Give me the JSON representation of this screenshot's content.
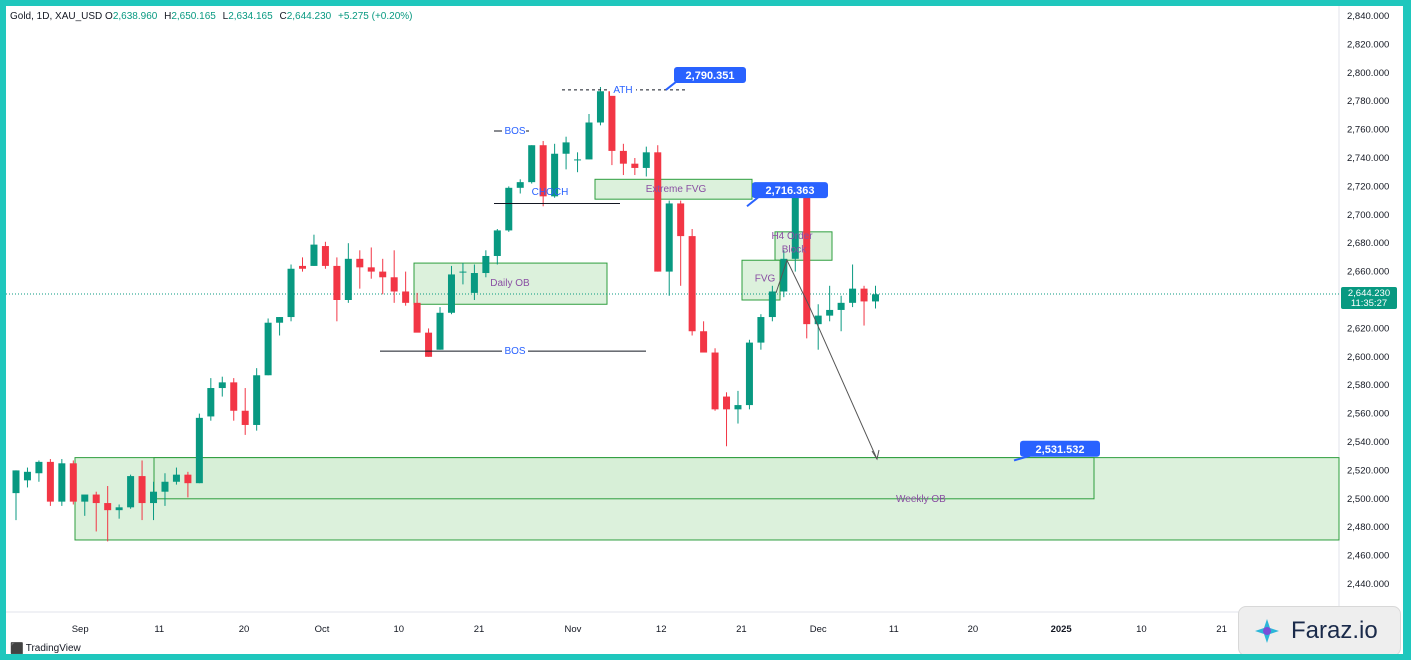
{
  "symbol_legend": {
    "title": "Gold, 1D, XAU_USD",
    "open_label": "O",
    "open": "2,638.960",
    "high_label": "H",
    "high": "2,650.165",
    "low_label": "L",
    "low": "2,634.165",
    "close_label": "C",
    "close": "2,644.230",
    "change": "+5.275 (+0.20%)"
  },
  "branding": {
    "tradingview": "TradingView",
    "watermark": "Faraz.io"
  },
  "colors": {
    "up": "#089981",
    "down": "#f23645",
    "zone_fill": "#d6efd6",
    "zone_border": "#2e9e3e",
    "callout": "#2962ff",
    "text_purple": "#8a4fa3",
    "text_blue": "#2962ff",
    "price_tag": "#089981"
  },
  "chart_data": {
    "type": "candlestick",
    "symbol": "XAU_USD",
    "timeframe": "1D",
    "ylim": [
      2420,
      2850
    ],
    "y_ticks": [
      "2,840.000",
      "2,820.000",
      "2,800.000",
      "2,780.000",
      "2,760.000",
      "2,740.000",
      "2,720.000",
      "2,700.000",
      "2,680.000",
      "2,660.000",
      "2,640.000",
      "2,620.000",
      "2,600.000",
      "2,580.000",
      "2,560.000",
      "2,540.000",
      "2,520.000",
      "2,500.000",
      "2,480.000",
      "2,460.000",
      "2,440.000"
    ],
    "x_ticks": [
      "Sep",
      "11",
      "20",
      "Oct",
      "10",
      "21",
      "Nov",
      "12",
      "21",
      "Dec",
      "11",
      "20",
      "2025",
      "10",
      "21"
    ],
    "current_price": {
      "price": "2,644.230",
      "countdown": "11:35:27",
      "value": 2644.23
    },
    "candles": [
      [
        2504,
        2520,
        2485,
        2520
      ],
      [
        2513,
        2522,
        2508,
        2519
      ],
      [
        2518,
        2527,
        2512,
        2526
      ],
      [
        2526,
        2528,
        2495,
        2498
      ],
      [
        2498,
        2528,
        2495,
        2525
      ],
      [
        2525,
        2527,
        2496,
        2498
      ],
      [
        2498,
        2502,
        2488,
        2503
      ],
      [
        2503,
        2505,
        2477,
        2497
      ],
      [
        2497,
        2509,
        2470,
        2492
      ],
      [
        2492,
        2496,
        2486,
        2494
      ],
      [
        2494,
        2517,
        2493,
        2516
      ],
      [
        2516,
        2527,
        2485,
        2497
      ],
      [
        2497,
        2512,
        2485,
        2505
      ],
      [
        2505,
        2518,
        2495,
        2512
      ],
      [
        2512,
        2522,
        2510,
        2517
      ],
      [
        2517,
        2519,
        2501,
        2511
      ],
      [
        2511,
        2560,
        2511,
        2557
      ],
      [
        2558,
        2585,
        2555,
        2578
      ],
      [
        2578,
        2586,
        2572,
        2582
      ],
      [
        2582,
        2585,
        2555,
        2562
      ],
      [
        2562,
        2578,
        2545,
        2552
      ],
      [
        2552,
        2592,
        2548,
        2587
      ],
      [
        2587,
        2627,
        2587,
        2624
      ],
      [
        2624,
        2628,
        2615,
        2628
      ],
      [
        2628,
        2665,
        2625,
        2662
      ],
      [
        2664,
        2670,
        2660,
        2662
      ],
      [
        2664,
        2686,
        2664,
        2679
      ],
      [
        2678,
        2681,
        2662,
        2664
      ],
      [
        2664,
        2670,
        2625,
        2640
      ],
      [
        2640,
        2680,
        2638,
        2669
      ],
      [
        2669,
        2675,
        2648,
        2663
      ],
      [
        2663,
        2677,
        2655,
        2660
      ],
      [
        2660,
        2669,
        2644,
        2656
      ],
      [
        2656,
        2675,
        2638,
        2646
      ],
      [
        2646,
        2660,
        2636,
        2638
      ],
      [
        2638,
        2645,
        2618,
        2617
      ],
      [
        2617,
        2620,
        2600,
        2600
      ],
      [
        2605,
        2635,
        2605,
        2631
      ],
      [
        2631,
        2664,
        2630,
        2658
      ],
      [
        2660,
        2666,
        2651,
        2660
      ],
      [
        2645,
        2665,
        2640,
        2659
      ],
      [
        2659,
        2675,
        2656,
        2671
      ],
      [
        2671,
        2690,
        2665,
        2689
      ],
      [
        2689,
        2720,
        2688,
        2719
      ],
      [
        2719,
        2725,
        2715,
        2723
      ],
      [
        2723,
        2749,
        2722,
        2749
      ],
      [
        2749,
        2752,
        2706,
        2713
      ],
      [
        2713,
        2750,
        2712,
        2743
      ],
      [
        2743,
        2755,
        2732,
        2751
      ],
      [
        2739,
        2744,
        2730,
        2739
      ],
      [
        2739,
        2771,
        2739,
        2765
      ],
      [
        2765,
        2790,
        2763,
        2787
      ],
      [
        2787,
        2790,
        2735,
        2745
      ],
      [
        2745,
        2750,
        2728,
        2736
      ],
      [
        2736,
        2740,
        2728,
        2733
      ],
      [
        2733,
        2748,
        2727,
        2744
      ],
      [
        2744,
        2749,
        2660,
        2660
      ],
      [
        2660,
        2710,
        2643,
        2708
      ],
      [
        2708,
        2710,
        2650,
        2685
      ],
      [
        2685,
        2690,
        2615,
        2618
      ],
      [
        2618,
        2625,
        2605,
        2603
      ],
      [
        2603,
        2606,
        2562,
        2563
      ],
      [
        2572,
        2575,
        2537,
        2563
      ],
      [
        2563,
        2576,
        2553,
        2566
      ],
      [
        2566,
        2612,
        2563,
        2610
      ],
      [
        2610,
        2630,
        2605,
        2628
      ],
      [
        2628,
        2650,
        2625,
        2646
      ],
      [
        2646,
        2675,
        2642,
        2669
      ],
      [
        2669,
        2716,
        2660,
        2716
      ],
      [
        2716,
        2718,
        2613,
        2623
      ],
      [
        2623,
        2637,
        2605,
        2629
      ],
      [
        2629,
        2650,
        2625,
        2633
      ],
      [
        2633,
        2643,
        2618,
        2638
      ],
      [
        2638,
        2665,
        2635,
        2648
      ],
      [
        2648,
        2650,
        2622,
        2639
      ],
      [
        2639,
        2650,
        2634,
        2644
      ]
    ],
    "zones": [
      {
        "label": "Weekly OB",
        "price_top": 2529,
        "price_bottom": 2471
      },
      {
        "label": "",
        "price_top": 2529,
        "price_bottom": 2500
      },
      {
        "label": "Daily OB",
        "price_top": 2666,
        "price_bottom": 2637
      },
      {
        "label": "Extreme FVG",
        "price_top": 2725,
        "price_bottom": 2711
      },
      {
        "label": "H4 Order Block",
        "price_top": 2688,
        "price_bottom": 2668
      },
      {
        "label": "FVG",
        "price_top": 2668,
        "price_bottom": 2640
      }
    ],
    "annotations": {
      "ath": "ATH",
      "bos_upper": "BOS",
      "bos_lower": "BOS",
      "choch": "CHOCH",
      "callouts": [
        {
          "text": "2,790.351",
          "value": 2790.351
        },
        {
          "text": "2,716.363",
          "value": 2716.363
        },
        {
          "text": "2,531.532",
          "value": 2531.532
        }
      ],
      "projection_target": 2528
    }
  }
}
